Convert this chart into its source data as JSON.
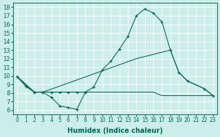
{
  "xlabel": "Humidex (Indice chaleur)",
  "bg_color": "#cceee8",
  "grid_color": "#ffffff",
  "line_color": "#006655",
  "xlim": [
    -0.5,
    23.5
  ],
  "ylim": [
    5.5,
    18.5
  ],
  "xticks": [
    0,
    1,
    2,
    3,
    4,
    5,
    6,
    7,
    8,
    9,
    10,
    11,
    12,
    13,
    14,
    15,
    16,
    17,
    18,
    19,
    20,
    21,
    22,
    23
  ],
  "yticks": [
    6,
    7,
    8,
    9,
    10,
    11,
    12,
    13,
    14,
    15,
    16,
    17,
    18
  ],
  "curve_main_x": [
    0,
    1,
    2,
    3,
    4,
    5,
    6,
    7,
    8,
    9,
    10,
    11,
    12,
    13,
    14,
    15,
    16,
    17,
    18,
    19,
    20,
    22,
    23
  ],
  "curve_main_y": [
    9.9,
    8.8,
    8.1,
    8.1,
    8.1,
    8.1,
    8.1,
    8.1,
    8.1,
    8.7,
    10.7,
    11.7,
    13.1,
    14.6,
    17.0,
    17.8,
    17.3,
    16.3,
    13.0,
    10.4,
    9.4,
    8.5,
    7.7
  ],
  "curve_low_x": [
    0,
    1,
    2,
    3,
    4,
    5,
    6,
    7,
    8
  ],
  "curve_low_y": [
    9.9,
    8.8,
    8.1,
    8.1,
    7.5,
    6.5,
    6.3,
    6.1,
    8.1
  ],
  "curve_mid_x": [
    0,
    2,
    3,
    14,
    18,
    19,
    20,
    22,
    23
  ],
  "curve_mid_y": [
    9.9,
    8.1,
    8.1,
    12.0,
    13.0,
    10.4,
    9.4,
    8.5,
    7.7
  ],
  "line_flat_x": [
    0,
    2,
    3,
    16,
    17,
    18,
    19,
    20,
    21,
    22,
    23
  ],
  "line_flat_y": [
    9.9,
    8.1,
    8.1,
    8.1,
    7.7,
    7.7,
    7.7,
    7.7,
    7.7,
    7.7,
    7.7
  ]
}
